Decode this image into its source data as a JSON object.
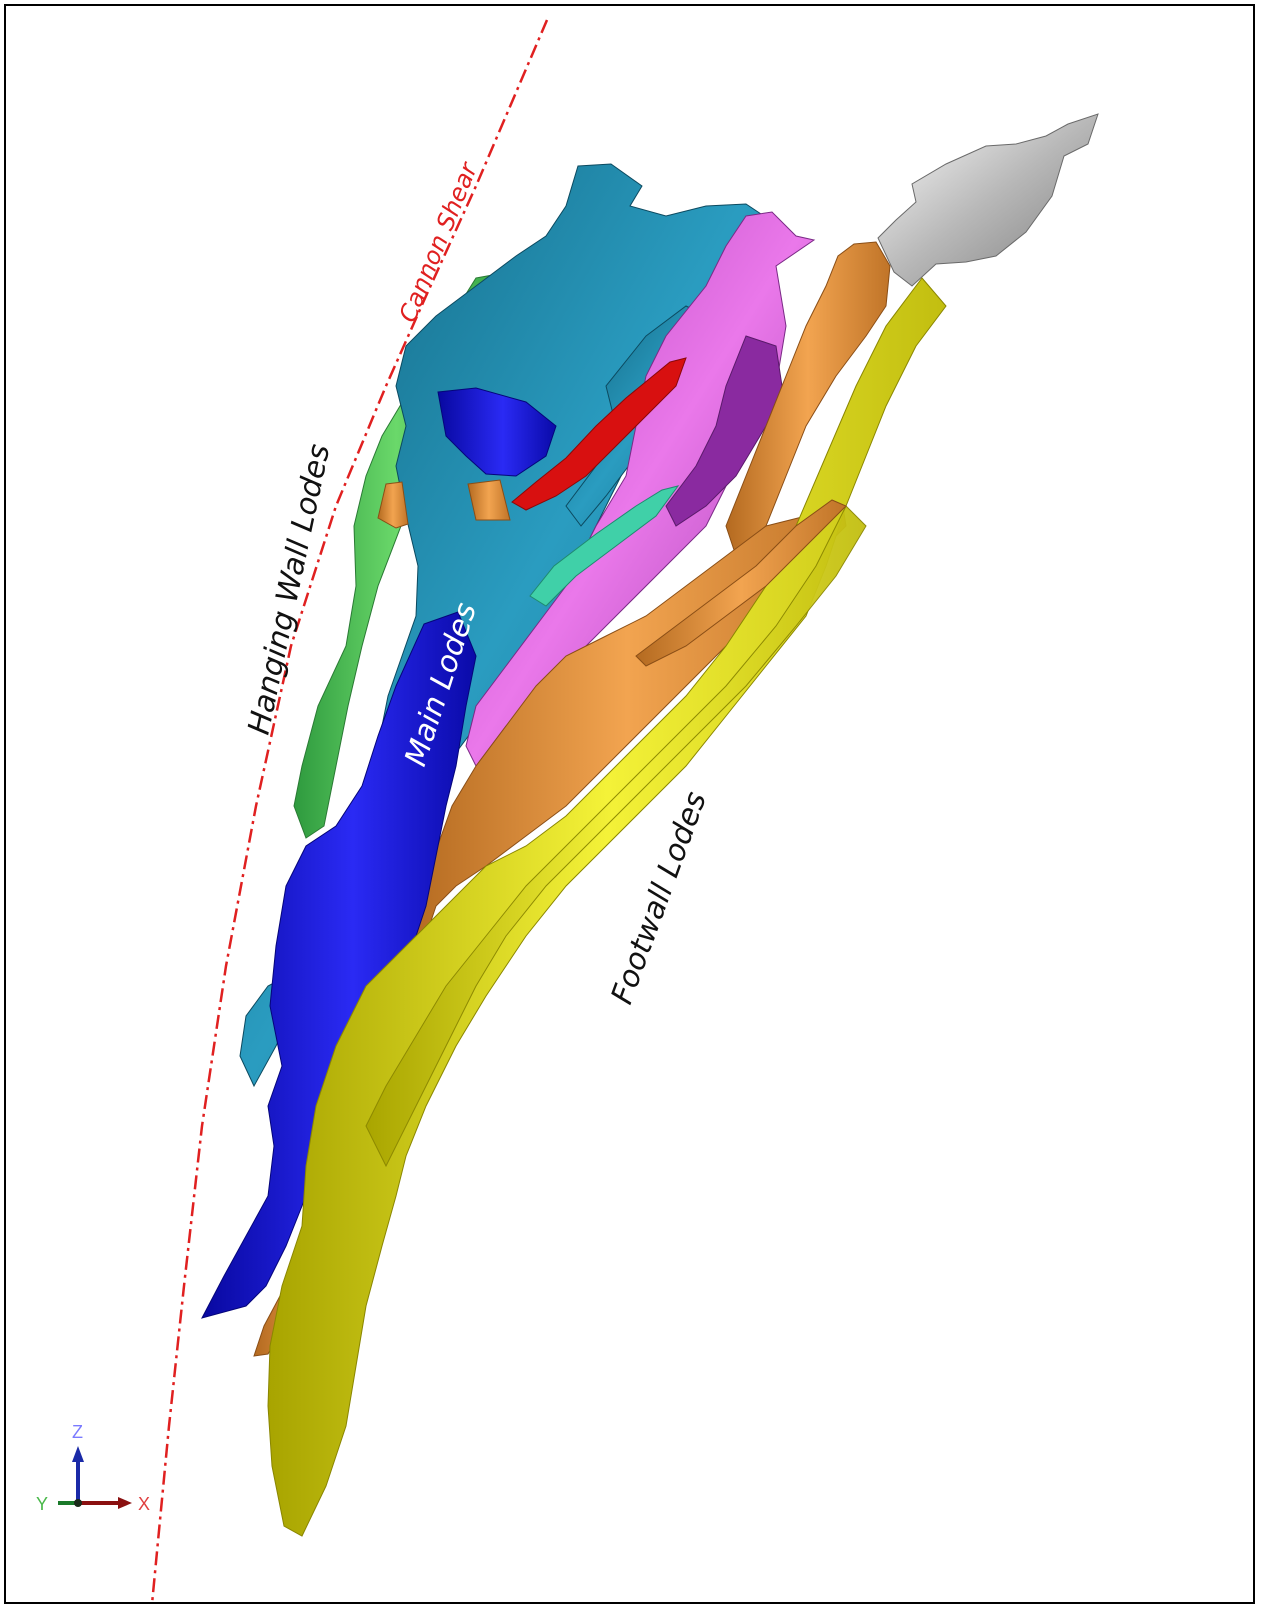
{
  "labels": {
    "cannon_shear": "Cannon Shear",
    "hanging_wall": "Hanging Wall Lodes",
    "main_lodes": "Main Lodes",
    "footwall": "Footwall Lodes"
  },
  "axes": {
    "z": "Z",
    "y": "Y",
    "x": "X"
  },
  "colors": {
    "shear_line": "#e02020",
    "teal": "#1a7f9e",
    "blue": "#1a1adc",
    "magenta": "#d85ad8",
    "orange": "#e0903a",
    "yellow": "#e6e21a",
    "green": "#5ccc5c",
    "red": "#d81010",
    "grey": "#bfbfbf",
    "mint": "#40d0a8"
  }
}
